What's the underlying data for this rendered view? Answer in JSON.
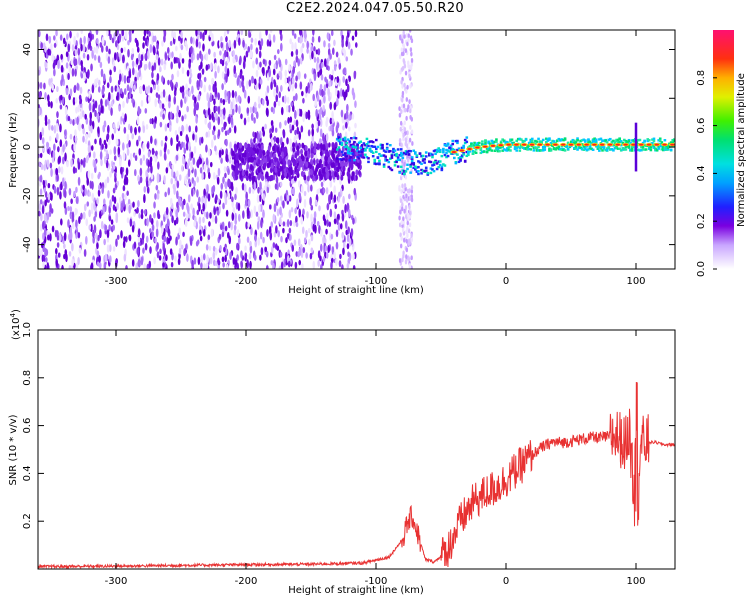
{
  "title": "C2E2.2024.047.05.50.R20",
  "colors": {
    "snr_line": "#e83232",
    "spectro_dark": "#6a00d8",
    "frame": "#000000"
  },
  "chart_data": [
    {
      "type": "heatmap",
      "xlabel": "Height of straight line (km)",
      "ylabel": "Frequency (Hz)",
      "xlim": [
        -360,
        130
      ],
      "ylim": [
        -50,
        48
      ],
      "xticks": [
        -300,
        -200,
        -100,
        0,
        100
      ],
      "xtick_labels": [
        "-300",
        "-200",
        "-100",
        "0",
        "100"
      ],
      "yticks": [
        -40,
        -20,
        0,
        20,
        40
      ],
      "ytick_labels": [
        "-40",
        "-20",
        "0",
        "20",
        "40"
      ],
      "colorbar": {
        "label": "Normalized spectral amplitude",
        "range": [
          0,
          1
        ],
        "ticks": [
          0.0,
          0.2,
          0.4,
          0.6,
          0.8
        ],
        "tick_labels": [
          "0.0",
          "0.2",
          "0.4",
          "0.6",
          "0.8"
        ]
      },
      "features": {
        "broadband_noise_region_km": [
          -360,
          -115
        ],
        "narrowband_gap_km": [
          -110,
          -85
        ],
        "noise_band_km": [
          -82,
          -72
        ],
        "signal_trace_points": [
          {
            "x": -130,
            "f": 0
          },
          {
            "x": -100,
            "f": -2
          },
          {
            "x": -80,
            "f": -6
          },
          {
            "x": -60,
            "f": -7
          },
          {
            "x": -40,
            "f": -2
          },
          {
            "x": -20,
            "f": 0
          },
          {
            "x": 0,
            "f": 1
          },
          {
            "x": 60,
            "f": 1
          },
          {
            "x": 100,
            "f": 1
          },
          {
            "x": 130,
            "f": 1
          }
        ],
        "spike_at_km": 100
      }
    },
    {
      "type": "line",
      "xlabel": "Height of straight line (km)",
      "ylabel": "SNR (10 * v/v)",
      "y_multiplier_label": "(x10",
      "y_multiplier_exp": "4",
      "y_multiplier_close": ")",
      "xlim": [
        -360,
        130
      ],
      "ylim": [
        0,
        1.0
      ],
      "xticks": [
        -300,
        -200,
        -100,
        0,
        100
      ],
      "xtick_labels": [
        "-300",
        "-200",
        "-100",
        "0",
        "100"
      ],
      "yticks": [
        0.2,
        0.4,
        0.6,
        0.8,
        1.0
      ],
      "ytick_labels": [
        "0.2",
        "0.4",
        "0.6",
        "0.8",
        "1.0"
      ],
      "series": [
        {
          "x": [
            -360,
            -300,
            -250,
            -200,
            -150,
            -110,
            -90,
            -80,
            -75,
            -72,
            -68,
            -62,
            -55,
            -45,
            -35,
            -25,
            -15,
            -5,
            5,
            15,
            25,
            35,
            45,
            55,
            65,
            75,
            85,
            92,
            96,
            100,
            104,
            108,
            115,
            122,
            130
          ],
          "y": [
            0.01,
            0.012,
            0.015,
            0.018,
            0.02,
            0.025,
            0.05,
            0.12,
            0.2,
            0.22,
            0.15,
            0.04,
            0.03,
            0.08,
            0.2,
            0.28,
            0.32,
            0.35,
            0.4,
            0.45,
            0.5,
            0.53,
            0.53,
            0.54,
            0.55,
            0.55,
            0.56,
            0.52,
            0.6,
            0.5,
            0.52,
            0.53,
            0.53,
            0.52,
            0.52
          ]
        }
      ]
    }
  ]
}
